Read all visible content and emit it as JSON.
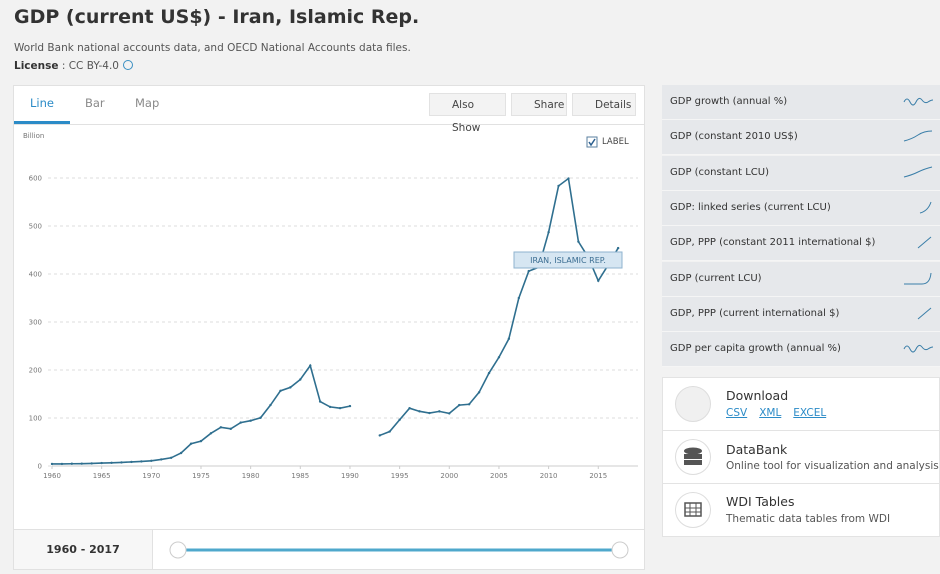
{
  "header": {
    "title": "GDP (current US$) - Iran, Islamic Rep.",
    "source": "World Bank national accounts data, and OECD National Accounts data files.",
    "license_label": "License",
    "license_value": ": CC BY-4.0"
  },
  "tabs": [
    "Line",
    "Bar",
    "Map"
  ],
  "actions": [
    "Also Show",
    "Share",
    "Details"
  ],
  "chart_data": {
    "type": "line",
    "unit": "Billion",
    "label_toggle": "LABEL",
    "x": [
      1960,
      1961,
      1962,
      1963,
      1964,
      1965,
      1966,
      1967,
      1968,
      1969,
      1970,
      1971,
      1972,
      1973,
      1974,
      1975,
      1976,
      1977,
      1978,
      1979,
      1980,
      1981,
      1982,
      1983,
      1984,
      1985,
      1986,
      1987,
      1988,
      1989,
      1990,
      1991,
      1992,
      1993,
      1994,
      1995,
      1996,
      1997,
      1998,
      1999,
      2000,
      2001,
      2002,
      2003,
      2004,
      2005,
      2006,
      2007,
      2008,
      2009,
      2010,
      2011,
      2012,
      2013,
      2014,
      2015,
      2016,
      2017
    ],
    "series": [
      {
        "name": "IRAN, ISLAMIC REP.",
        "color": "#2f6f8f",
        "values": [
          4.2,
          4.4,
          4.7,
          4.9,
          5.4,
          6.2,
          6.7,
          7.5,
          8.5,
          9.6,
          10.9,
          13.7,
          17.1,
          27.1,
          46.4,
          51.8,
          68.1,
          80.6,
          77.4,
          90.4,
          94.4,
          100.5,
          127,
          156.6,
          163.8,
          180.2,
          209.1,
          134.2,
          123.1,
          120.5,
          124.8,
          null,
          null,
          63.7,
          71.8,
          96.4,
          120.4,
          113.9,
          110.3,
          113.8,
          109.6,
          126.9,
          128.6,
          153.5,
          193.6,
          226.5,
          265.1,
          349.9,
          406.1,
          414.1,
          487.1,
          583.5,
          598.9,
          467.4,
          434.5,
          385.9,
          418.9,
          454.0
        ]
      }
    ],
    "xlim": [
      1960,
      2019
    ],
    "ylim": [
      0,
      700
    ],
    "xticks": [
      1960,
      1965,
      1970,
      1975,
      1980,
      1985,
      1990,
      1995,
      2000,
      2005,
      2010,
      2015
    ],
    "yticks": [
      0,
      100,
      200,
      300,
      400,
      500,
      600
    ],
    "grid": true
  },
  "range": "1960 - 2017",
  "related": [
    "GDP growth (annual %)",
    "GDP (constant 2010 US$)",
    "GDP (constant LCU)",
    "GDP: linked series (current LCU)",
    "GDP, PPP (constant 2011 international $)",
    "GDP (current LCU)",
    "GDP, PPP (current international $)",
    "GDP per capita growth (annual %)"
  ],
  "links": [
    {
      "title": "Download",
      "formats": [
        "CSV",
        "XML",
        "EXCEL"
      ]
    },
    {
      "title": "DataBank",
      "description": "Online tool for visualization and analysis"
    },
    {
      "title": "WDI Tables",
      "description": "Thematic data tables from WDI"
    }
  ]
}
